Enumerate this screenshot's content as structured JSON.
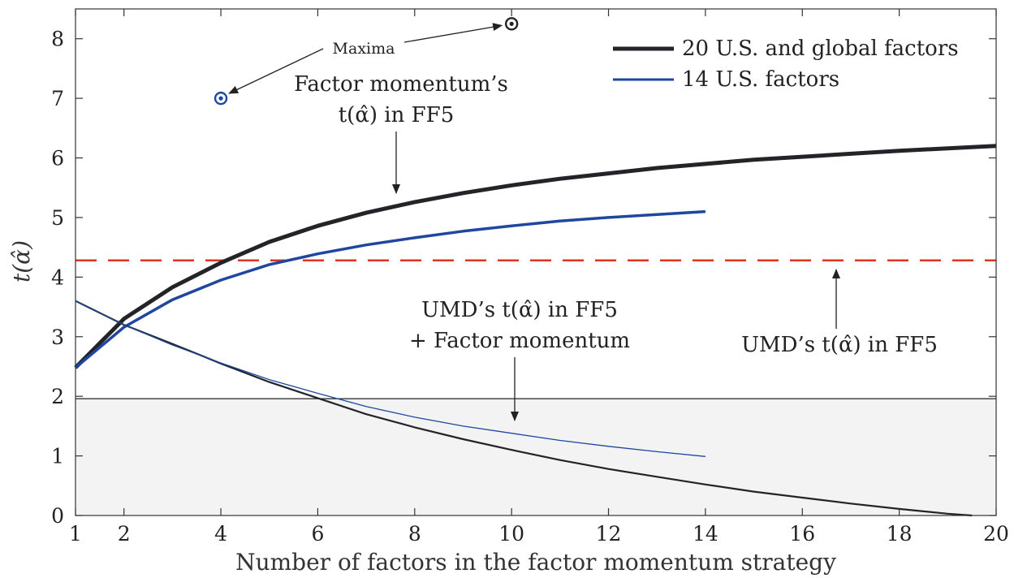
{
  "chart_data": {
    "type": "line",
    "xlabel": "Number of factors in the factor momentum strategy",
    "ylabel": "t(α̂)",
    "xlim": [
      1,
      20
    ],
    "ylim": [
      0,
      8.5
    ],
    "x_ticks": [
      "1",
      "2",
      "4",
      "6",
      "8",
      "10",
      "12",
      "14",
      "16",
      "18",
      "20"
    ],
    "y_ticks": [
      "0",
      "1",
      "2",
      "3",
      "4",
      "5",
      "6",
      "7",
      "8"
    ],
    "grid": false,
    "legend_position": "top-right",
    "series": [
      {
        "name": "20 U.S. and global factors",
        "color": "#222428",
        "x": [
          1,
          2,
          3,
          4,
          5,
          6,
          7,
          8,
          9,
          10,
          11,
          12,
          13,
          14,
          15,
          16,
          17,
          18,
          19,
          20
        ],
        "y": [
          2.48,
          3.3,
          3.83,
          4.24,
          4.59,
          4.86,
          5.08,
          5.26,
          5.41,
          5.54,
          5.65,
          5.74,
          5.83,
          5.9,
          5.97,
          6.02,
          6.07,
          6.12,
          6.16,
          6.2
        ]
      },
      {
        "name": "14 U.S. factors",
        "color": "#1f47a0",
        "x": [
          1,
          2,
          3,
          4,
          5,
          6,
          7,
          8,
          9,
          10,
          11,
          12,
          13,
          14
        ],
        "y": [
          2.48,
          3.16,
          3.62,
          3.95,
          4.21,
          4.39,
          4.54,
          4.66,
          4.77,
          4.86,
          4.94,
          5.0,
          5.05,
          5.1
        ]
      },
      {
        "color": "#222428",
        "x": [
          1,
          2,
          3,
          4,
          5,
          6,
          7,
          8,
          9,
          10,
          11,
          12,
          13,
          14,
          15,
          16,
          17,
          18,
          19,
          19.5
        ],
        "y": [
          3.6,
          3.2,
          2.88,
          2.55,
          2.24,
          1.97,
          1.7,
          1.48,
          1.28,
          1.1,
          0.93,
          0.78,
          0.65,
          0.52,
          0.4,
          0.3,
          0.2,
          0.11,
          0.03,
          0.0
        ]
      },
      {
        "color": "#1f47a0",
        "x": [
          1,
          2,
          3,
          4,
          5,
          6,
          7,
          8,
          9,
          10,
          11,
          12,
          13,
          14
        ],
        "y": [
          3.6,
          3.2,
          2.86,
          2.56,
          2.28,
          2.05,
          1.83,
          1.65,
          1.5,
          1.38,
          1.26,
          1.16,
          1.07,
          0.99
        ]
      }
    ],
    "reference_lines": [
      {
        "y": 4.28,
        "style": "dashed",
        "color": "#e03326"
      },
      {
        "y": 1.96,
        "style": "solid",
        "color": "#222222"
      }
    ],
    "shaded_region": {
      "y_from": 0,
      "y_to": 1.96,
      "color": "#f3f3f3"
    },
    "maxima_points": [
      {
        "x": 4,
        "y": 7.0,
        "color": "#1f47a0"
      },
      {
        "x": 10,
        "y": 8.25,
        "color": "#222428"
      }
    ],
    "annotations": {
      "maxima": "Maxima",
      "factor_momentum_line1": "Factor momentum’s",
      "factor_momentum_line2": "t(α̂) in FF5",
      "umd_plus_line1": "UMD’s t(α̂) in FF5",
      "umd_plus_line2": "+ Factor momentum",
      "umd_ff5": "UMD’s t(α̂) in FF5"
    }
  }
}
